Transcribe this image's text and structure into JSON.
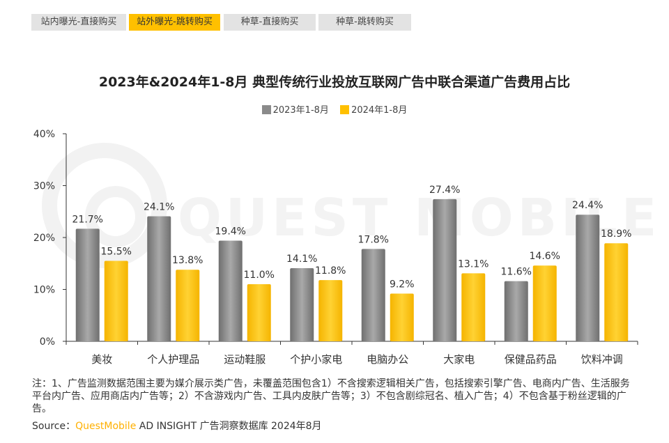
{
  "tabs": [
    {
      "label": "站内曝光-直接购买",
      "active": false
    },
    {
      "label": "站外曝光-跳转购买",
      "active": true
    },
    {
      "label": "种草-直接购买",
      "active": false
    },
    {
      "label": "种草-跳转购买",
      "active": false
    }
  ],
  "watermark": "QUEST MOBILE",
  "chart_data": {
    "type": "bar",
    "title": "2023年&2024年1-8月 典型传统行业投放互联网广告中联合渠道广告费用占比",
    "categories": [
      "美妆",
      "个人护理品",
      "运动鞋服",
      "个护小家电",
      "电脑办公",
      "大家电",
      "保健品药品",
      "饮料冲调"
    ],
    "series": [
      {
        "name": "2023年1-8月",
        "color": "#8a8a8a",
        "values": [
          21.7,
          24.1,
          19.4,
          14.1,
          17.8,
          27.4,
          11.6,
          24.4
        ],
        "labels": [
          "21.7%",
          "24.1%",
          "19.4%",
          "14.1%",
          "17.8%",
          "27.4%",
          "11.6%",
          "24.4%"
        ]
      },
      {
        "name": "2024年1-8月",
        "color": "#ffc000",
        "values": [
          15.5,
          13.8,
          11.0,
          11.8,
          9.2,
          13.1,
          14.6,
          18.9
        ],
        "labels": [
          "15.5%",
          "13.8%",
          "11.0%",
          "11.8%",
          "9.2%",
          "13.1%",
          "14.6%",
          "18.9%"
        ]
      }
    ],
    "ylim": [
      0,
      40
    ],
    "yticks": [
      0,
      10,
      20,
      30,
      40
    ],
    "ytick_labels": [
      "0%",
      "10%",
      "20%",
      "30%",
      "40%"
    ],
    "grid": false,
    "legend_position": "top-center"
  },
  "note": "注：1、广告监测数据范围主要为媒介展示类广告，未覆盖范围包含1）不含搜索逻辑相关广告，包括搜索引擎广告、电商内广告、生活服务平台内广告、应用商店内广告等；2）不含游戏内广告、工具内皮肤广告等；3）不包含剧综冠名、植入广告；4）不包含基于粉丝逻辑的广告。",
  "source": {
    "prefix": "Source：",
    "brand": "QuestMobile",
    "suffix": " AD INSIGHT 广告洞察数据库 2024年8月"
  }
}
